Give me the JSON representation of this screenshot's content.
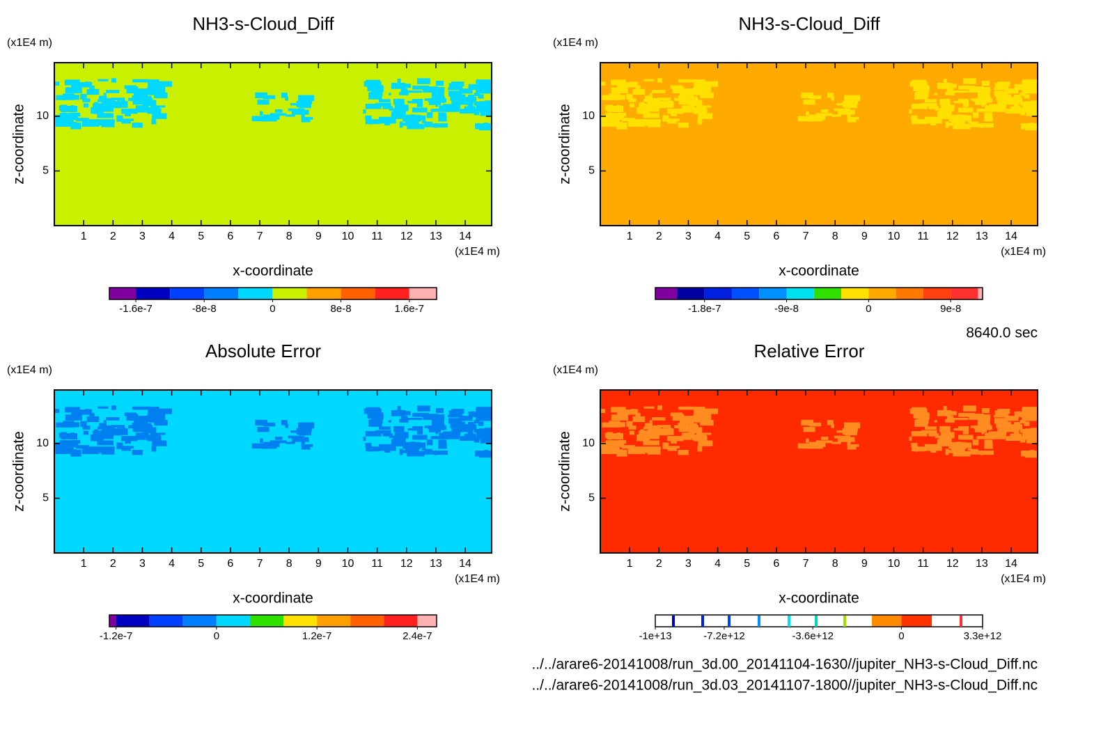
{
  "chart_data": [
    {
      "type": "contour",
      "title": "NH3-s-Cloud_Diff",
      "xlabel": "x-coordinate",
      "ylabel": "z-coordinate",
      "xunit": "(x1E4 m)",
      "yunit": "(x1E4 m)",
      "xlim": [
        0,
        14.9
      ],
      "ylim": [
        0,
        14.9
      ],
      "xticks": [
        1,
        2,
        3,
        4,
        5,
        6,
        7,
        8,
        9,
        10,
        11,
        12,
        13,
        14
      ],
      "yticks": [
        5,
        10
      ],
      "field_color": "#c8f000",
      "pattern_color": "#00d8ff",
      "colorbar": {
        "levels": [
          -1.91e-07,
          -1.6e-07,
          -1.2e-07,
          -8e-08,
          -4e-08,
          0,
          4e-08,
          8e-08,
          1.2e-07,
          1.6e-07,
          1.92e-07
        ],
        "colors": [
          "#8000a0",
          "#0000c0",
          "#0040ff",
          "#0080ff",
          "#00d8ff",
          "#c8f000",
          "#ffa000",
          "#ff6000",
          "#ff2020",
          "#ffb0b0"
        ],
        "ticks": [
          -1.6e-07,
          -8e-08,
          0,
          8e-08,
          1.6e-07
        ]
      }
    },
    {
      "type": "contour",
      "title": "NH3-s-Cloud_Diff",
      "xlabel": "x-coordinate",
      "ylabel": "z-coordinate",
      "xunit": "(x1E4 m)",
      "yunit": "(x1E4 m)",
      "xlim": [
        0,
        14.9
      ],
      "ylim": [
        0,
        14.9
      ],
      "xticks": [
        1,
        2,
        3,
        4,
        5,
        6,
        7,
        8,
        9,
        10,
        11,
        12,
        13,
        14
      ],
      "yticks": [
        5,
        10
      ],
      "field_color": "#ffaa00",
      "pattern_color": "#ffe000",
      "colorbar": {
        "levels": [
          -2.34e-07,
          -2.1e-07,
          -1.8e-07,
          -1.5e-07,
          -1.2e-07,
          -9e-08,
          -6e-08,
          -3e-08,
          0,
          3e-08,
          6e-08,
          9e-08,
          1.2e-07,
          1.25e-07
        ],
        "colors": [
          "#8000a0",
          "#0000a0",
          "#0020e0",
          "#0050ff",
          "#0090ff",
          "#00e0f0",
          "#30e000",
          "#ffe000",
          "#ffa800",
          "#ff7800",
          "#ff4010",
          "#ff3030",
          "#ffb0b0"
        ],
        "ticks": [
          -1.8e-07,
          -9e-08,
          0,
          9e-08
        ]
      }
    },
    {
      "type": "contour",
      "title": "Absolute Error",
      "xlabel": "x-coordinate",
      "ylabel": "z-coordinate",
      "xunit": "(x1E4 m)",
      "yunit": "(x1E4 m)",
      "xlim": [
        0,
        14.9
      ],
      "ylim": [
        0,
        14.9
      ],
      "xticks": [
        1,
        2,
        3,
        4,
        5,
        6,
        7,
        8,
        9,
        10,
        11,
        12,
        13,
        14
      ],
      "yticks": [
        5,
        10
      ],
      "field_color": "#00d8ff",
      "pattern_color": "#0080f0",
      "colorbar": {
        "levels": [
          -1.28e-07,
          -1.2e-07,
          -8e-08,
          -4e-08,
          0,
          4e-08,
          8e-08,
          1.2e-07,
          1.6e-07,
          2e-07,
          2.4e-07,
          2.63e-07
        ],
        "colors": [
          "#8000a0",
          "#0000c0",
          "#0040ff",
          "#0080ff",
          "#00d8ff",
          "#30e000",
          "#ffe000",
          "#ffa000",
          "#ff6000",
          "#ff2020",
          "#ffb0b0"
        ],
        "ticks": [
          -1.2e-07,
          0,
          1.2e-07,
          2.4e-07
        ]
      }
    },
    {
      "type": "contour",
      "title": "Relative Error",
      "xlabel": "x-coordinate",
      "ylabel": "z-coordinate",
      "xunit": "(x1E4 m)",
      "yunit": "(x1E4 m)",
      "xlim": [
        0,
        14.9
      ],
      "ylim": [
        0,
        14.9
      ],
      "xticks": [
        1,
        2,
        3,
        4,
        5,
        6,
        7,
        8,
        9,
        10,
        11,
        12,
        13,
        14
      ],
      "yticks": [
        5,
        10
      ],
      "field_color": "#ff2a00",
      "pattern_color": "#ff8c20",
      "colorbar": {
        "levels": [
          -10000000000000.0,
          -1200000000000.0,
          0,
          1240000000000.0,
          3300000000000.0
        ],
        "colors": [
          "#ffffff",
          "#ff8c00",
          "#ff3300",
          "#ffffff"
        ],
        "ticks": [
          {
            "value": -10000000000000.0,
            "label": "-1e+13"
          },
          {
            "value": -7200000000000.0,
            "label": "-7.2e+12"
          },
          {
            "value": -3600000000000.0,
            "label": "-3.6e+12"
          },
          0,
          {
            "value": 3300000000000.0,
            "label": "3.3e+12"
          }
        ]
      }
    }
  ],
  "time": "8640.0 sec",
  "files": [
    "../../arare6-20141008/run_3d.00_20141104-1630//jupiter_NH3-s-Cloud_Diff.nc",
    "../../arare6-20141008/run_3d.03_20141107-1800//jupiter_NH3-s-Cloud_Diff.nc"
  ]
}
